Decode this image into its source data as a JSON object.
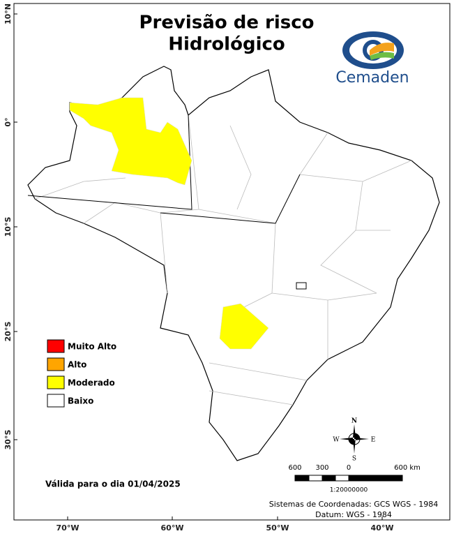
{
  "header": {
    "title": [
      "Previsão de risco",
      "Hidrológico"
    ],
    "logo": "Cemaden"
  },
  "legend": [
    {
      "label": "Muito Alto",
      "color": "#ff0000"
    },
    {
      "label": "Alto",
      "color": "#ffa500"
    },
    {
      "label": "Moderado",
      "color": "#ffff00"
    },
    {
      "label": "Baixo",
      "color": "#ffffff"
    }
  ],
  "validity": "Válida para o dia 01/04/2025",
  "scale": {
    "labels": [
      "600",
      "300",
      "0",
      "600 km"
    ],
    "ratio": "1:20000000"
  },
  "compass": {
    "n": "N",
    "s": "S",
    "e": "E",
    "w": "W"
  },
  "footer": [
    "Sistemas de Coordenadas: GCS WGS - 1984",
    "Datum: WGS - 1984"
  ],
  "lat_labels": [
    "10°N",
    "0°",
    "10°S",
    "20°S",
    "30°S"
  ],
  "lon_labels": [
    "70°W",
    "60°W",
    "50°W",
    "40°W"
  ]
}
